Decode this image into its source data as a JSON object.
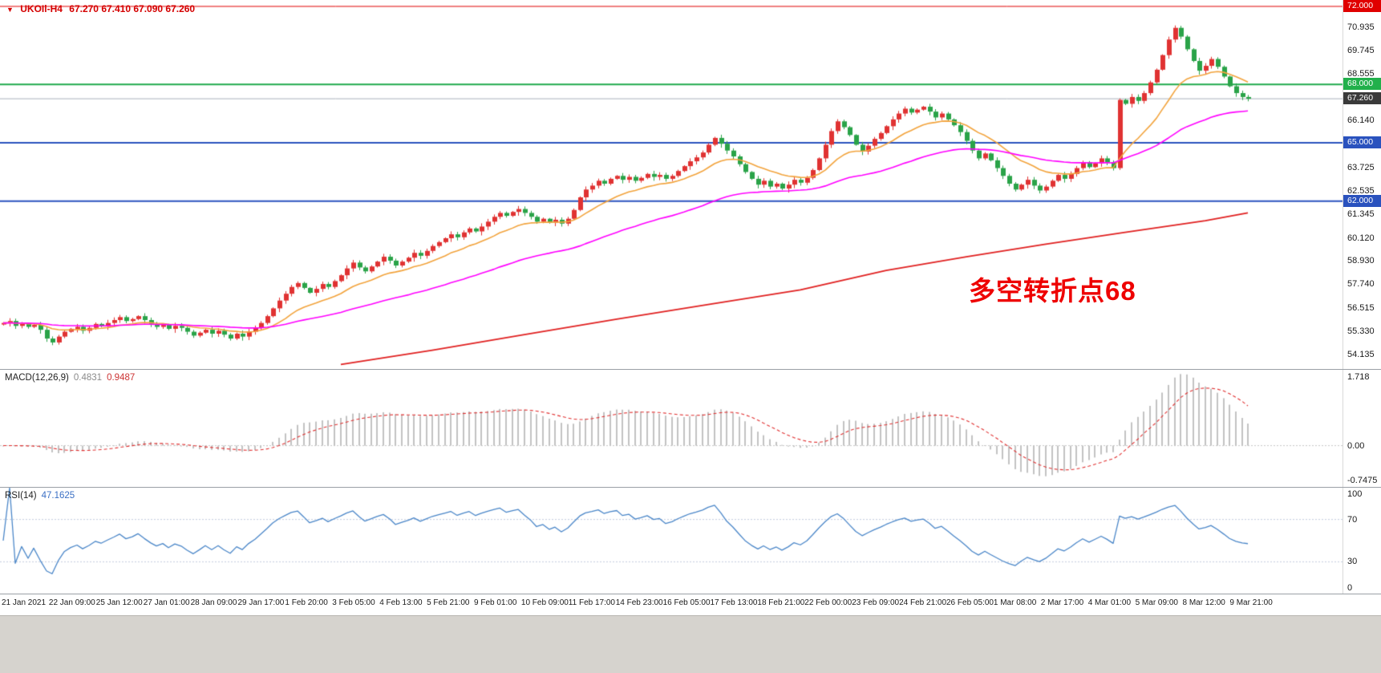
{
  "window": {
    "marker": "▼",
    "symbol": "UKOIl-H4",
    "ohlc": "67.270 67.410 67.090 67.260"
  },
  "annotation": {
    "text": "多空转折点68"
  },
  "indicators": {
    "macd": {
      "label": "MACD(12,26,9)",
      "value_main": "0.4831",
      "value_signal": "0.9487",
      "ticks": [
        "1.718",
        "0.00",
        "-0.7475"
      ]
    },
    "rsi": {
      "label": "RSI(14)",
      "value": "47.1625",
      "ticks": [
        "100",
        "70",
        "30",
        "0"
      ],
      "levels": [
        70,
        30
      ]
    }
  },
  "chart_data": {
    "type": "candlestick",
    "title": "UKOIl-H4 67.270 67.410 67.090 67.260",
    "timeframe": "H4",
    "ylim": [
      53.388,
      72.329
    ],
    "current_price": 67.26,
    "price_ticks": [
      "70.935",
      "69.745",
      "68.555",
      "66.140",
      "63.725",
      "62.535",
      "61.345",
      "60.120",
      "58.930",
      "57.740",
      "56.515",
      "55.330",
      "54.135"
    ],
    "badges": [
      {
        "label": "72.000",
        "value": 72.0,
        "bg": "#e00000"
      },
      {
        "label": "68.000",
        "value": 68.0,
        "bg": "#21b04b"
      },
      {
        "label": "67.260",
        "value": 67.26,
        "bg": "#3a3a3a"
      },
      {
        "label": "65.000",
        "value": 65.0,
        "bg": "#2a52be"
      },
      {
        "label": "62.000",
        "value": 62.0,
        "bg": "#2a52be"
      }
    ],
    "hlines": [
      {
        "value": 72.0,
        "color": "#e00000",
        "width": 1
      },
      {
        "value": 68.0,
        "color": "#1faa4b",
        "width": 2
      },
      {
        "value": 67.26,
        "color": "#aab2bd",
        "width": 1
      },
      {
        "value": 65.0,
        "color": "#2a52be",
        "width": 2
      },
      {
        "value": 62.0,
        "color": "#2a52be",
        "width": 2
      }
    ],
    "x_labels": [
      "21 Jan 2021",
      "22 Jan 09:00",
      "25 Jan 12:00",
      "27 Jan 01:00",
      "28 Jan 09:00",
      "29 Jan 17:00",
      "1 Feb 20:00",
      "3 Feb 05:00",
      "4 Feb 13:00",
      "5 Feb 21:00",
      "9 Feb 01:00",
      "10 Feb 09:00",
      "11 Feb 17:00",
      "14 Feb 23:00",
      "16 Feb 05:00",
      "17 Feb 13:00",
      "18 Feb 21:00",
      "22 Feb 00:00",
      "23 Feb 09:00",
      "24 Feb 21:00",
      "26 Feb 05:00",
      "1 Mar 08:00",
      "2 Mar 17:00",
      "4 Mar 01:00",
      "5 Mar 09:00",
      "8 Mar 12:00",
      "9 Mar 21:00"
    ],
    "closes": [
      55.75,
      55.85,
      55.6,
      55.7,
      55.55,
      55.65,
      55.4,
      54.95,
      54.75,
      55.05,
      55.3,
      55.45,
      55.55,
      55.35,
      55.5,
      55.7,
      55.6,
      55.75,
      55.9,
      56.05,
      55.85,
      55.95,
      56.1,
      55.9,
      55.7,
      55.55,
      55.65,
      55.45,
      55.6,
      55.5,
      55.3,
      55.1,
      55.25,
      55.4,
      55.2,
      55.35,
      55.15,
      54.95,
      55.2,
      55.05,
      55.3,
      55.5,
      55.75,
      56.1,
      56.5,
      56.9,
      57.25,
      57.6,
      57.8,
      57.55,
      57.3,
      57.5,
      57.75,
      57.6,
      57.9,
      58.2,
      58.55,
      58.85,
      58.6,
      58.4,
      58.65,
      58.9,
      59.15,
      58.95,
      58.7,
      58.9,
      59.1,
      59.35,
      59.2,
      59.45,
      59.7,
      59.9,
      60.1,
      60.3,
      60.15,
      60.4,
      60.6,
      60.45,
      60.7,
      60.95,
      61.2,
      61.4,
      61.25,
      61.45,
      61.6,
      61.4,
      61.2,
      60.95,
      61.1,
      60.9,
      61.05,
      60.85,
      61.1,
      61.55,
      62.2,
      62.6,
      62.8,
      63.05,
      62.9,
      63.15,
      63.3,
      63.1,
      63.25,
      63.05,
      63.2,
      63.4,
      63.25,
      63.35,
      63.15,
      63.3,
      63.55,
      63.8,
      64.05,
      64.25,
      64.5,
      64.9,
      65.25,
      64.95,
      64.6,
      64.3,
      63.9,
      63.5,
      63.15,
      62.85,
      63.05,
      62.75,
      62.9,
      62.65,
      62.85,
      63.1,
      62.95,
      63.2,
      63.6,
      64.2,
      64.9,
      65.6,
      66.1,
      65.8,
      65.4,
      64.9,
      64.55,
      64.85,
      65.2,
      65.5,
      65.85,
      66.2,
      66.5,
      66.75,
      66.55,
      66.7,
      66.85,
      66.6,
      66.3,
      66.5,
      66.2,
      65.9,
      65.55,
      65.1,
      64.6,
      64.2,
      64.45,
      64.1,
      63.7,
      63.3,
      62.9,
      62.6,
      62.85,
      63.1,
      62.8,
      62.55,
      62.75,
      63.05,
      63.35,
      63.15,
      63.4,
      63.7,
      64.0,
      63.75,
      63.95,
      64.2,
      64.0,
      63.7,
      67.2,
      67.0,
      67.35,
      67.15,
      67.55,
      68.1,
      68.75,
      69.5,
      70.3,
      70.9,
      70.45,
      69.8,
      69.2,
      68.7,
      68.95,
      69.3,
      68.9,
      68.4,
      67.9,
      67.55,
      67.35,
      67.26
    ],
    "moving_averages": [
      {
        "name": "fast",
        "period": 14,
        "color": "#f2a33c"
      },
      {
        "name": "medium",
        "period": 50,
        "color": "#ff00ff"
      },
      {
        "name": "slow",
        "anchors": true,
        "color": "#e02020"
      }
    ],
    "slow_ma_anchors": [
      [
        55,
        53.62
      ],
      [
        70,
        54.35
      ],
      [
        85,
        55.15
      ],
      [
        100,
        55.95
      ],
      [
        115,
        56.7
      ],
      [
        130,
        57.45
      ],
      [
        144,
        58.45
      ],
      [
        157,
        59.15
      ],
      [
        170,
        59.8
      ],
      [
        183,
        60.4
      ],
      [
        196,
        61.0
      ],
      [
        203,
        61.4
      ]
    ],
    "colors": {
      "bull": "#e03232",
      "bear": "#2aa348",
      "macd_hist": "#c2c2c2",
      "macd_signal": "#e03030",
      "rsi_line": "#4a86c8",
      "level_dotted": "#c3cdde",
      "zero_dotted": "#c8c8c8"
    }
  }
}
